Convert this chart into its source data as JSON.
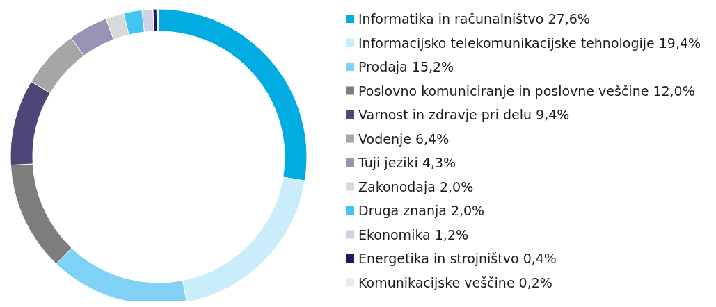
{
  "chart_data": {
    "type": "donut",
    "categories": [
      "Informatika in računalništvo",
      "Informacijsko telekomunikacijske tehnologije",
      "Prodaja",
      "Poslovno komuniciranje in poslovne veščine",
      "Varnost in zdravje pri delu",
      "Vodenje",
      "Tuji jeziki",
      "Zakonodaja",
      "Druga znanja",
      "Ekonomika",
      "Energetika in strojništvo",
      "Komunikacijske veščine"
    ],
    "values": [
      27.6,
      19.4,
      15.2,
      12.0,
      9.4,
      6.4,
      4.3,
      2.0,
      2.0,
      1.2,
      0.4,
      0.2
    ],
    "value_labels": [
      "27,6%",
      "19,4%",
      "15,2%",
      "12,0%",
      "9,4%",
      "6,4%",
      "4,3%",
      "2,0%",
      "2,0%",
      "1,2%",
      "0,4%",
      "0,2%"
    ],
    "colors": [
      "#00ace2",
      "#c9edf9",
      "#7fd1f5",
      "#7d7d7d",
      "#4f4579",
      "#a6a6a6",
      "#9a93b5",
      "#d9d9d9",
      "#40c6f0",
      "#d3d0e3",
      "#1a1a5e",
      "#ebebeb"
    ],
    "legend": "right"
  }
}
